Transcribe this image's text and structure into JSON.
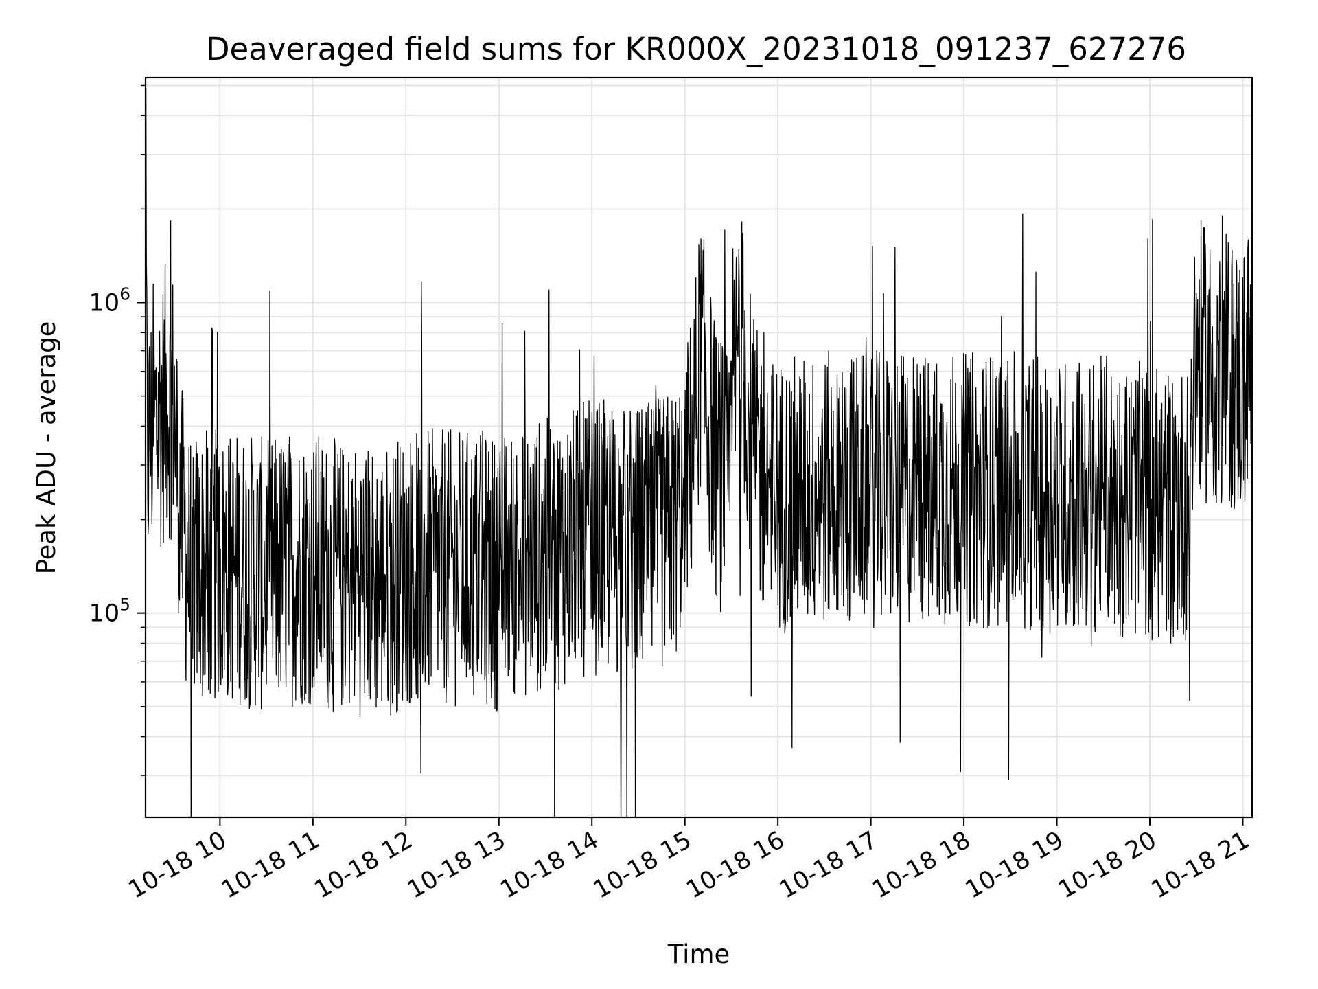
{
  "chart_data": {
    "type": "line",
    "title": "Deaveraged field sums for KR000X_20231018_091237_627276",
    "xlabel": "Time",
    "ylabel": "Peak ADU - average",
    "yscale": "log",
    "grid": true,
    "legend": "none",
    "line_color": "#000000",
    "x_range": [
      "2023-10-18 09:12",
      "2023-10-18 21:06"
    ],
    "y_range": [
      22000,
      5300000
    ],
    "x_ticks": [
      {
        "t": "2023-10-18 10:00",
        "label": "10-18 10"
      },
      {
        "t": "2023-10-18 11:00",
        "label": "10-18 11"
      },
      {
        "t": "2023-10-18 12:00",
        "label": "10-18 12"
      },
      {
        "t": "2023-10-18 13:00",
        "label": "10-18 13"
      },
      {
        "t": "2023-10-18 14:00",
        "label": "10-18 14"
      },
      {
        "t": "2023-10-18 15:00",
        "label": "10-18 15"
      },
      {
        "t": "2023-10-18 16:00",
        "label": "10-18 16"
      },
      {
        "t": "2023-10-18 17:00",
        "label": "10-18 17"
      },
      {
        "t": "2023-10-18 18:00",
        "label": "10-18 18"
      },
      {
        "t": "2023-10-18 19:00",
        "label": "10-18 19"
      },
      {
        "t": "2023-10-18 20:00",
        "label": "10-18 20"
      },
      {
        "t": "2023-10-18 21:00",
        "label": "10-18 21"
      }
    ],
    "y_ticks": [
      {
        "value": 100000,
        "base": "10",
        "exp": "5"
      },
      {
        "value": 1000000,
        "base": "10",
        "exp": "6"
      }
    ],
    "series": [
      {
        "x": [
          "2023-10-18 09:12",
          "2023-10-18 09:13",
          "2023-10-18 09:16",
          "2023-10-18 09:20",
          "2023-10-18 09:25",
          "2023-10-18 09:30",
          "2023-10-18 09:35",
          "2023-10-18 09:40",
          "2023-10-18 09:45",
          "2023-10-18 09:50",
          "2023-10-18 10:00",
          "2023-10-18 10:15",
          "2023-10-18 10:30",
          "2023-10-18 10:45",
          "2023-10-18 11:00",
          "2023-10-18 11:15",
          "2023-10-18 11:30",
          "2023-10-18 11:45",
          "2023-10-18 12:00",
          "2023-10-18 12:15",
          "2023-10-18 12:30",
          "2023-10-18 12:45",
          "2023-10-18 13:00",
          "2023-10-18 13:20",
          "2023-10-18 13:40",
          "2023-10-18 14:00",
          "2023-10-18 14:20",
          "2023-10-18 14:40",
          "2023-10-18 14:55",
          "2023-10-18 15:05",
          "2023-10-18 15:10",
          "2023-10-18 15:20",
          "2023-10-18 15:28",
          "2023-10-18 15:35",
          "2023-10-18 15:45",
          "2023-10-18 16:00",
          "2023-10-18 16:30",
          "2023-10-18 17:00",
          "2023-10-18 17:30",
          "2023-10-18 18:00",
          "2023-10-18 18:30",
          "2023-10-18 19:00",
          "2023-10-18 19:30",
          "2023-10-18 19:50",
          "2023-10-18 20:00",
          "2023-10-18 20:15",
          "2023-10-18 20:25",
          "2023-10-18 20:28",
          "2023-10-18 20:40",
          "2023-10-18 20:50",
          "2023-10-18 21:00",
          "2023-10-18 21:03",
          "2023-10-18 21:06"
        ],
        "y": [
          3300000,
          330000,
          380000,
          420000,
          480000,
          480000,
          200000,
          140000,
          140000,
          140000,
          140000,
          140000,
          130000,
          140000,
          140000,
          130000,
          130000,
          125000,
          140000,
          140000,
          140000,
          140000,
          135000,
          150000,
          160000,
          175000,
          170000,
          170000,
          200000,
          350000,
          700000,
          300000,
          250000,
          850000,
          300000,
          240000,
          250000,
          250000,
          250000,
          250000,
          250000,
          240000,
          240000,
          230000,
          230000,
          220000,
          230000,
          700000,
          600000,
          600000,
          550000,
          650000,
          600000
        ]
      }
    ]
  }
}
